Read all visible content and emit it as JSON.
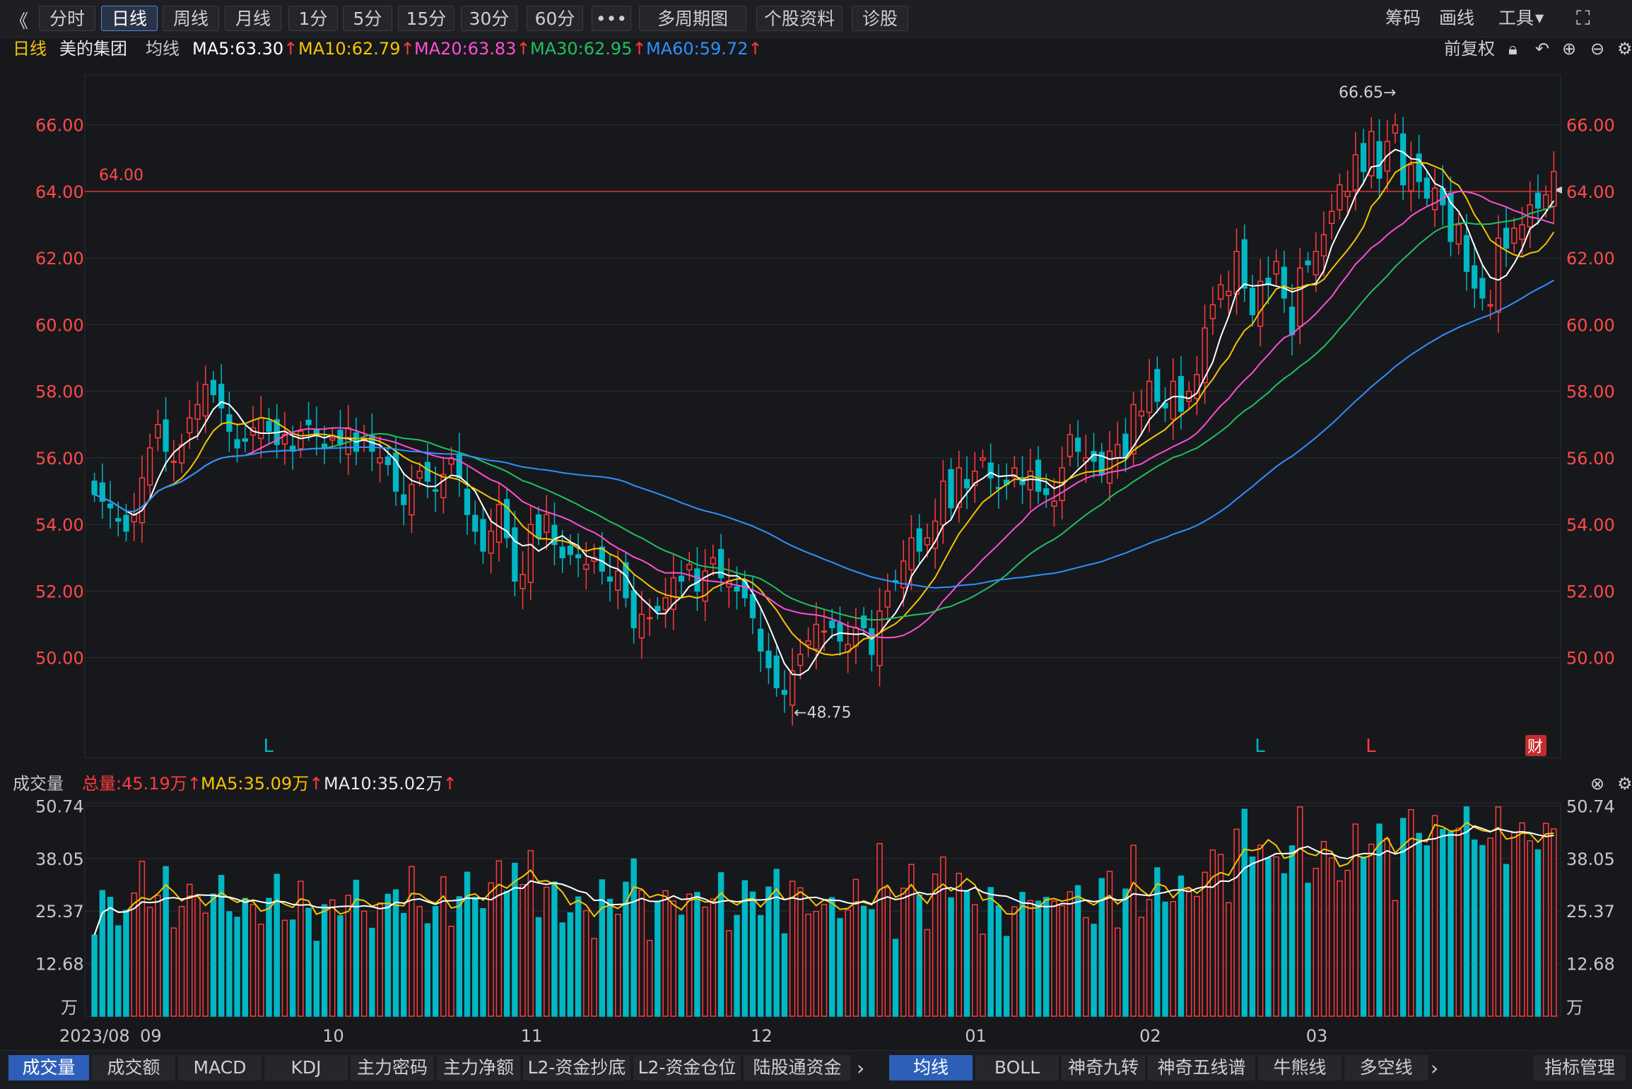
{
  "toolbar": {
    "back": "《",
    "tabs": [
      "分时",
      "日线",
      "周线",
      "月线",
      "1分",
      "5分",
      "15分",
      "30分",
      "60分",
      "•••",
      "多周期图",
      "个股资料",
      "诊股"
    ],
    "active_tab": "日线",
    "right": [
      "筹码",
      "画线",
      "工具"
    ]
  },
  "info": {
    "period": "日线",
    "stock": "美的集团",
    "ma_title": "均线",
    "ma5": "MA5:63.30",
    "ma10": "MA10:62.79",
    "ma20": "MA20:63.83",
    "ma30": "MA30:62.95",
    "ma60": "MA60:59.72",
    "fq": "前复权"
  },
  "volume_info": {
    "title": "成交量",
    "total": "总量:45.19万",
    "ma5": "MA5:35.09万",
    "ma10": "MA10:35.02万"
  },
  "bottom_left": [
    "成交量",
    "成交额",
    "MACD",
    "KDJ",
    "主力密码",
    "主力净额",
    "L2-资金抄底",
    "L2-资金仓位",
    "陆股通资金"
  ],
  "bottom_right": [
    "均线",
    "BOLL",
    "神奇九转",
    "神奇五线谱",
    "牛熊线",
    "多空线"
  ],
  "bottom_manage": "指标管理",
  "colors": {
    "up": "#ff3b3b",
    "down": "#00b7c3",
    "ma5": "#ffffff",
    "ma10": "#f5c400",
    "ma20": "#ff4fd0",
    "ma30": "#20c060",
    "ma60": "#2f8fff",
    "axis_text": "#ff4a4a"
  },
  "chart_data": [
    {
      "type": "candlestick",
      "title": "日线 美的集团",
      "y_ticks": [
        50.0,
        52.0,
        54.0,
        56.0,
        58.0,
        60.0,
        62.0,
        64.0,
        66.0
      ],
      "y_tick_labels": [
        "50.00",
        "52.00",
        "54.00",
        "56.00",
        "58.00",
        "60.00",
        "62.00",
        "64.00",
        "66.00"
      ],
      "ylim": [
        47.0,
        67.5
      ],
      "x_tick_labels": [
        "2023/08",
        "09",
        "10",
        "11",
        "12",
        "01",
        "02",
        "03"
      ],
      "x_tick_index": [
        0,
        7,
        30,
        55,
        84,
        111,
        133,
        154
      ],
      "reference_line": {
        "value": 64.0,
        "label": "64.00"
      },
      "annotations": [
        {
          "label": "66.65→",
          "value": 66.65
        },
        {
          "label": "←48.75",
          "value": 48.75
        }
      ],
      "markers": [
        {
          "label": "L",
          "index": 22
        },
        {
          "label": "L",
          "index": 147
        },
        {
          "label": "L",
          "index": 161
        }
      ],
      "fin_badge": "财",
      "close": [
        54.9,
        54.7,
        54.5,
        54.1,
        53.8,
        54.3,
        55.4,
        56.3,
        57.0,
        56.2,
        55.9,
        56.4,
        57.2,
        57.6,
        58.2,
        57.9,
        57.5,
        56.8,
        56.3,
        56.5,
        56.9,
        57.2,
        56.8,
        56.4,
        56.7,
        56.2,
        56.8,
        57.0,
        56.7,
        56.3,
        56.6,
        56.4,
        56.9,
        56.2,
        56.6,
        56.2,
        56.0,
        55.8,
        55.0,
        54.6,
        55.2,
        55.6,
        55.3,
        55.0,
        55.5,
        56.0,
        55.4,
        54.3,
        53.8,
        53.2,
        53.8,
        54.6,
        53.6,
        52.3,
        52.5,
        54.0,
        53.6,
        54.3,
        53.4,
        53.0,
        53.1,
        53.0,
        52.8,
        53.0,
        52.6,
        52.3,
        52.6,
        51.8,
        50.9,
        51.3,
        51.2,
        51.4,
        51.8,
        52.4,
        52.3,
        52.8,
        52.0,
        52.6,
        53.0,
        52.4,
        52.3,
        52.0,
        51.8,
        51.2,
        50.2,
        49.7,
        49.1,
        48.9,
        49.6,
        50.1,
        50.5,
        51.0,
        50.8,
        50.9,
        50.5,
        50.4,
        50.9,
        50.9,
        50.1,
        51.4,
        52.0,
        52.3,
        52.9,
        53.6,
        53.2,
        53.6,
        54.1,
        55.3,
        54.5,
        55.7,
        55.1,
        55.6,
        56.0,
        55.4,
        55.1,
        55.2,
        55.7,
        55.2,
        55.6,
        55.0,
        54.9,
        54.7,
        55.7,
        56.7,
        56.2,
        56.0,
        55.9,
        55.5,
        56.2,
        56.4,
        56.0,
        57.6,
        57.4,
        58.3,
        57.7,
        57.5,
        58.3,
        57.4,
        58.0,
        58.5,
        59.9,
        60.6,
        61.2,
        61.0,
        62.2,
        61.1,
        60.3,
        61.3,
        61.2,
        61.9,
        60.8,
        59.7,
        61.7,
        61.8,
        62.2,
        62.7,
        63.4,
        64.2,
        64.0,
        65.1,
        64.6,
        65.8,
        64.4,
        65.5,
        66.0,
        64.2,
        64.8,
        64.3,
        63.8,
        64.1,
        63.6,
        62.5,
        63.0,
        61.6,
        61.1,
        60.8,
        60.6,
        62.6,
        62.3,
        62.9,
        63.0,
        63.6,
        63.5,
        63.9,
        64.6
      ],
      "ma60_end": 59.72,
      "ma5_end": 63.3,
      "ma10_end": 62.79,
      "ma20_end": 63.83,
      "ma30_end": 62.95
    },
    {
      "type": "bar",
      "title": "成交量",
      "unit": "万",
      "y_ticks": [
        12.68,
        25.37,
        38.05,
        50.74
      ],
      "y_tick_labels": [
        "12.68",
        "25.37",
        "38.05",
        "50.74"
      ],
      "ylim": [
        0,
        51.5
      ],
      "ma5_end": 35.09,
      "ma10_end": 35.02,
      "last_value": 45.19
    }
  ]
}
